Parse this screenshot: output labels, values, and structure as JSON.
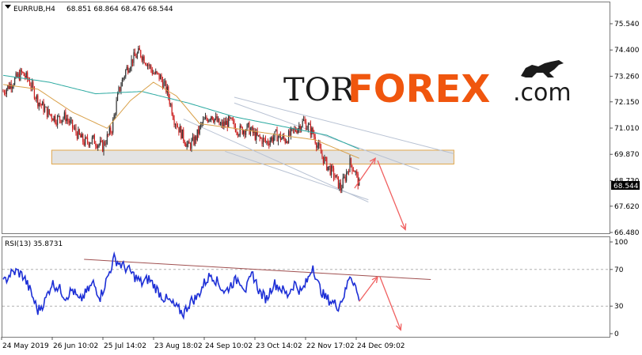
{
  "header": {
    "symbol": "EURRUB,H4",
    "ohlc": "68.851 68.864 68.476 68.544"
  },
  "brand": {
    "part1": "TOR",
    "part2": "FOREX",
    "part3": ".com"
  },
  "colors": {
    "candle_up": "#333333",
    "candle_down": "#cc1f1f",
    "ma_fast": "#d9a14a",
    "ma_slow": "#2aa9a0",
    "channel": "#b8c2d3",
    "zone_fill": "#dcdcdc",
    "zone_border": "#e0a64a",
    "arrow": "#f06060",
    "rsi_line": "#1d2fd6",
    "rsi_trend": "#a05050",
    "brand_orange": "#f0560e"
  },
  "chart_data": [
    {
      "type": "candlestick",
      "title": "",
      "price_axis": {
        "ticks": [
          "75.540",
          "74.400",
          "73.260",
          "72.150",
          "71.010",
          "69.870",
          "68.730",
          "67.620",
          "66.480"
        ],
        "range": [
          66.48,
          75.54
        ],
        "current_price_label": "68.544"
      },
      "time_axis": {
        "ticks": [
          "24 May 2019",
          "26 Jun 10:02",
          "25 Jul 14:02",
          "23 Aug 18:02",
          "24 Sep 10:02",
          "23 Oct 14:02",
          "22 Nov 17:02",
          "24 Dec 09:02"
        ]
      },
      "close_path": [
        {
          "t": 0,
          "v": 72.6
        },
        {
          "t": 4,
          "v": 73.0
        },
        {
          "t": 8,
          "v": 73.4
        },
        {
          "t": 11,
          "v": 73.1
        },
        {
          "t": 15,
          "v": 72.2
        },
        {
          "t": 19,
          "v": 71.7
        },
        {
          "t": 23,
          "v": 71.4
        },
        {
          "t": 27,
          "v": 71.5
        },
        {
          "t": 31,
          "v": 70.9
        },
        {
          "t": 35,
          "v": 70.4
        },
        {
          "t": 39,
          "v": 70.5
        },
        {
          "t": 43,
          "v": 70.2
        },
        {
          "t": 47,
          "v": 71.0
        },
        {
          "t": 50,
          "v": 72.6
        },
        {
          "t": 53,
          "v": 73.5
        },
        {
          "t": 56,
          "v": 74.0
        },
        {
          "t": 59,
          "v": 74.3
        },
        {
          "t": 62,
          "v": 73.9
        },
        {
          "t": 65,
          "v": 73.4
        },
        {
          "t": 68,
          "v": 73.2
        },
        {
          "t": 71,
          "v": 72.6
        },
        {
          "t": 74,
          "v": 71.4
        },
        {
          "t": 77,
          "v": 70.8
        },
        {
          "t": 80,
          "v": 70.2
        },
        {
          "t": 83,
          "v": 70.5
        },
        {
          "t": 86,
          "v": 71.2
        },
        {
          "t": 90,
          "v": 71.6
        },
        {
          "t": 94,
          "v": 71.1
        },
        {
          "t": 98,
          "v": 71.3
        },
        {
          "t": 102,
          "v": 70.9
        },
        {
          "t": 106,
          "v": 71.0
        },
        {
          "t": 110,
          "v": 70.6
        },
        {
          "t": 114,
          "v": 70.4
        },
        {
          "t": 118,
          "v": 70.7
        },
        {
          "t": 122,
          "v": 70.5
        },
        {
          "t": 126,
          "v": 70.9
        },
        {
          "t": 130,
          "v": 71.3
        },
        {
          "t": 134,
          "v": 70.8
        },
        {
          "t": 137,
          "v": 70.0
        },
        {
          "t": 140,
          "v": 69.4
        },
        {
          "t": 143,
          "v": 69.0
        },
        {
          "t": 146,
          "v": 68.4
        },
        {
          "t": 148,
          "v": 68.9
        },
        {
          "t": 150,
          "v": 69.5
        },
        {
          "t": 152,
          "v": 69.2
        },
        {
          "t": 154,
          "v": 68.544
        }
      ],
      "ma_slow": [
        {
          "t": 0,
          "v": 73.3
        },
        {
          "t": 20,
          "v": 73.0
        },
        {
          "t": 40,
          "v": 72.5
        },
        {
          "t": 60,
          "v": 72.6
        },
        {
          "t": 80,
          "v": 72.1
        },
        {
          "t": 100,
          "v": 71.5
        },
        {
          "t": 120,
          "v": 71.1
        },
        {
          "t": 140,
          "v": 70.7
        },
        {
          "t": 154,
          "v": 70.1
        }
      ],
      "ma_fast": [
        {
          "t": 0,
          "v": 72.9
        },
        {
          "t": 15,
          "v": 72.7
        },
        {
          "t": 30,
          "v": 71.7
        },
        {
          "t": 45,
          "v": 71.0
        },
        {
          "t": 55,
          "v": 72.2
        },
        {
          "t": 65,
          "v": 73.0
        },
        {
          "t": 75,
          "v": 72.4
        },
        {
          "t": 85,
          "v": 71.2
        },
        {
          "t": 100,
          "v": 71.0
        },
        {
          "t": 120,
          "v": 70.7
        },
        {
          "t": 135,
          "v": 70.5
        },
        {
          "t": 154,
          "v": 69.7
        }
      ],
      "support_zone": {
        "from_t": 21,
        "to_t": 195,
        "high": 70.05,
        "low": 69.45
      },
      "channel_lines": [
        {
          "t1": 100,
          "v1": 72.35,
          "t2": 195,
          "v2": 69.9
        },
        {
          "t1": 100,
          "v1": 72.1,
          "t2": 180,
          "v2": 69.2
        },
        {
          "t1": 78,
          "v1": 71.4,
          "t2": 158,
          "v2": 67.8
        },
        {
          "t1": 96,
          "v1": 70.0,
          "t2": 158,
          "v2": 67.9
        }
      ],
      "forecast_arrows": [
        {
          "t1": 152,
          "v1": 68.4,
          "t2": 161,
          "v2": 69.7
        },
        {
          "t1": 162,
          "v1": 69.6,
          "t2": 174,
          "v2": 66.6
        }
      ]
    },
    {
      "type": "line",
      "title": "RSI(13) 35.8731",
      "y_axis": {
        "ticks": [
          "100",
          "70",
          "30",
          "0"
        ],
        "range": [
          0,
          100
        ]
      },
      "levels": [
        70,
        30
      ],
      "series": [
        {
          "points": [
            {
              "t": 0,
              "v": 55
            },
            {
              "t": 3,
              "v": 65
            },
            {
              "t": 6,
              "v": 68
            },
            {
              "t": 9,
              "v": 62
            },
            {
              "t": 12,
              "v": 45
            },
            {
              "t": 15,
              "v": 25
            },
            {
              "t": 18,
              "v": 35
            },
            {
              "t": 21,
              "v": 55
            },
            {
              "t": 24,
              "v": 50
            },
            {
              "t": 27,
              "v": 40
            },
            {
              "t": 30,
              "v": 48
            },
            {
              "t": 33,
              "v": 35
            },
            {
              "t": 36,
              "v": 45
            },
            {
              "t": 39,
              "v": 55
            },
            {
              "t": 42,
              "v": 40
            },
            {
              "t": 45,
              "v": 60
            },
            {
              "t": 48,
              "v": 82
            },
            {
              "t": 51,
              "v": 75
            },
            {
              "t": 54,
              "v": 70
            },
            {
              "t": 57,
              "v": 62
            },
            {
              "t": 60,
              "v": 55
            },
            {
              "t": 63,
              "v": 60
            },
            {
              "t": 66,
              "v": 50
            },
            {
              "t": 69,
              "v": 40
            },
            {
              "t": 72,
              "v": 35
            },
            {
              "t": 75,
              "v": 28
            },
            {
              "t": 78,
              "v": 22
            },
            {
              "t": 81,
              "v": 35
            },
            {
              "t": 84,
              "v": 40
            },
            {
              "t": 87,
              "v": 55
            },
            {
              "t": 90,
              "v": 65
            },
            {
              "t": 93,
              "v": 55
            },
            {
              "t": 96,
              "v": 45
            },
            {
              "t": 99,
              "v": 55
            },
            {
              "t": 102,
              "v": 60
            },
            {
              "t": 105,
              "v": 48
            },
            {
              "t": 108,
              "v": 65
            },
            {
              "t": 111,
              "v": 45
            },
            {
              "t": 114,
              "v": 38
            },
            {
              "t": 117,
              "v": 55
            },
            {
              "t": 120,
              "v": 50
            },
            {
              "t": 123,
              "v": 42
            },
            {
              "t": 126,
              "v": 55
            },
            {
              "t": 129,
              "v": 45
            },
            {
              "t": 132,
              "v": 60
            },
            {
              "t": 134,
              "v": 75
            },
            {
              "t": 136,
              "v": 55
            },
            {
              "t": 139,
              "v": 40
            },
            {
              "t": 142,
              "v": 35
            },
            {
              "t": 145,
              "v": 30
            },
            {
              "t": 148,
              "v": 45
            },
            {
              "t": 150,
              "v": 65
            },
            {
              "t": 152,
              "v": 55
            },
            {
              "t": 154,
              "v": 35.87
            }
          ]
        }
      ],
      "trend_line": {
        "t1": 35,
        "v1": 81,
        "t2": 185,
        "v2": 59
      },
      "forecast_arrows": [
        {
          "t1": 154,
          "v1": 35,
          "t2": 162,
          "v2": 62
        },
        {
          "t1": 163,
          "v1": 62,
          "t2": 172,
          "v2": 4
        }
      ]
    }
  ]
}
